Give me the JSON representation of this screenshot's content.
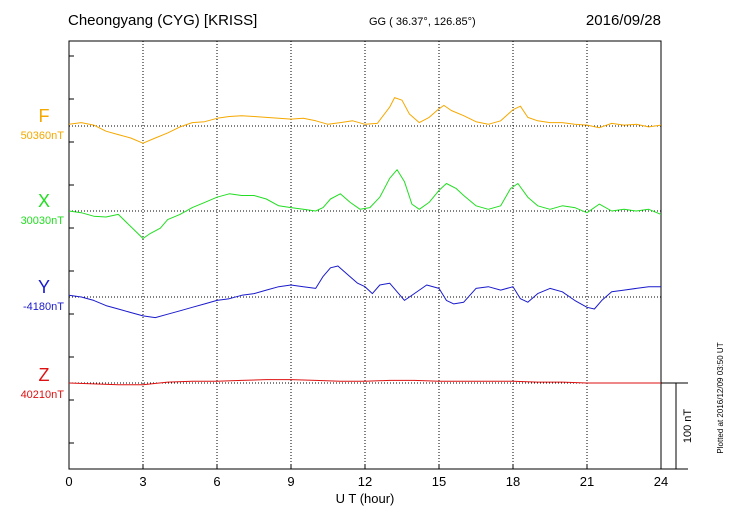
{
  "header": {
    "station": "Cheongyang (CYG)  [KRISS]",
    "coords": "GG ( 36.37°, 126.85°)",
    "date": "2016/09/28"
  },
  "axis": {
    "xlabel": "U T (hour)",
    "ticks": [
      "0",
      "3",
      "6",
      "9",
      "12",
      "15",
      "18",
      "21",
      "24"
    ]
  },
  "scale_bar": {
    "label": "100 nT"
  },
  "side_note": "Plotted at 2016/12/09 03:50 UT",
  "chart_data": {
    "type": "line",
    "x_unit": "UT hour",
    "xlim": [
      0,
      24
    ],
    "scale_nT": 100,
    "grid": true,
    "series": [
      {
        "name": "F",
        "baseline_label": "50360nT",
        "color": "#f5a800",
        "x": [
          0,
          0.5,
          1,
          1.5,
          2,
          2.5,
          3,
          3.5,
          4,
          4.5,
          5,
          5.5,
          6,
          6.5,
          7,
          7.5,
          8,
          8.5,
          9,
          9.5,
          10,
          10.5,
          11,
          11.5,
          12,
          12.5,
          13,
          13.2,
          13.5,
          13.8,
          14.2,
          14.6,
          15,
          15.2,
          15.5,
          16,
          16.5,
          17,
          17.5,
          18,
          18.3,
          18.6,
          19,
          19.5,
          20,
          20.5,
          21,
          21.5,
          22,
          22.5,
          23,
          23.5,
          24
        ],
        "y": [
          2,
          4,
          1,
          -6,
          -10,
          -14,
          -20,
          -14,
          -8,
          -1,
          4,
          5,
          9,
          11,
          12,
          11,
          10,
          9,
          8,
          9,
          6,
          2,
          4,
          6,
          2,
          3,
          22,
          33,
          30,
          14,
          4,
          10,
          20,
          24,
          18,
          12,
          5,
          2,
          6,
          19,
          23,
          10,
          6,
          4,
          4,
          2,
          1,
          -2,
          3,
          1,
          2,
          -1,
          1
        ]
      },
      {
        "name": "X",
        "baseline_label": "30030nT",
        "color": "#22dd22",
        "x": [
          0,
          0.5,
          1,
          1.5,
          2,
          2.5,
          3,
          3.3,
          3.7,
          4,
          4.5,
          5,
          5.5,
          6,
          6.5,
          7,
          7.5,
          8,
          8.5,
          9,
          9.5,
          10,
          10.3,
          10.6,
          11,
          11.4,
          11.8,
          12.2,
          12.6,
          13,
          13.3,
          13.6,
          13.9,
          14.2,
          14.6,
          15,
          15.3,
          15.7,
          16,
          16.5,
          17,
          17.5,
          17.9,
          18.2,
          18.6,
          19,
          19.5,
          20,
          20.5,
          21,
          21.5,
          22,
          22.5,
          23,
          23.5,
          24
        ],
        "y": [
          0,
          -2,
          -6,
          -7,
          -4,
          -18,
          -32,
          -26,
          -20,
          -10,
          -4,
          4,
          10,
          16,
          20,
          18,
          18,
          14,
          6,
          4,
          2,
          0,
          4,
          14,
          20,
          10,
          2,
          4,
          16,
          38,
          48,
          34,
          8,
          2,
          10,
          24,
          32,
          26,
          18,
          6,
          2,
          6,
          26,
          32,
          16,
          6,
          2,
          6,
          4,
          -2,
          8,
          0,
          2,
          0,
          2,
          -4
        ]
      },
      {
        "name": "Y",
        "baseline_label": "-4180nT",
        "color": "#1a1acc",
        "x": [
          0,
          0.5,
          1,
          1.5,
          2,
          2.5,
          3,
          3.5,
          4,
          4.5,
          5,
          5.5,
          6,
          6.5,
          7,
          7.5,
          8,
          8.5,
          9,
          9.5,
          10,
          10.3,
          10.6,
          10.9,
          11.3,
          11.7,
          12,
          12.3,
          12.6,
          13,
          13.3,
          13.6,
          14,
          14.5,
          15,
          15.3,
          15.6,
          16,
          16.5,
          17,
          17.5,
          18,
          18.3,
          18.6,
          19,
          19.5,
          20,
          20.5,
          21,
          21.3,
          21.6,
          22,
          22.5,
          23,
          23.5,
          24
        ],
        "y": [
          2,
          0,
          -4,
          -10,
          -14,
          -18,
          -22,
          -24,
          -20,
          -16,
          -12,
          -8,
          -4,
          -2,
          2,
          4,
          8,
          12,
          14,
          12,
          10,
          24,
          34,
          36,
          26,
          16,
          12,
          4,
          14,
          16,
          6,
          -4,
          4,
          14,
          10,
          -4,
          -8,
          -6,
          10,
          12,
          8,
          12,
          -2,
          -6,
          4,
          10,
          6,
          -4,
          -12,
          -14,
          -4,
          6,
          8,
          10,
          12,
          12
        ]
      },
      {
        "name": "Z",
        "baseline_label": "40210nT",
        "color": "#dd1111",
        "x": [
          0,
          1,
          2,
          3,
          4,
          5,
          6,
          7,
          8,
          9,
          10,
          11,
          12,
          13,
          14,
          15,
          16,
          17,
          18,
          19,
          20,
          21,
          22,
          23,
          24
        ],
        "y": [
          0,
          -1,
          -2,
          -2,
          1,
          2,
          2,
          3,
          4,
          4,
          3,
          2,
          2,
          3,
          3,
          2,
          2,
          2,
          2,
          1,
          1,
          0,
          0,
          0,
          0
        ]
      }
    ]
  }
}
